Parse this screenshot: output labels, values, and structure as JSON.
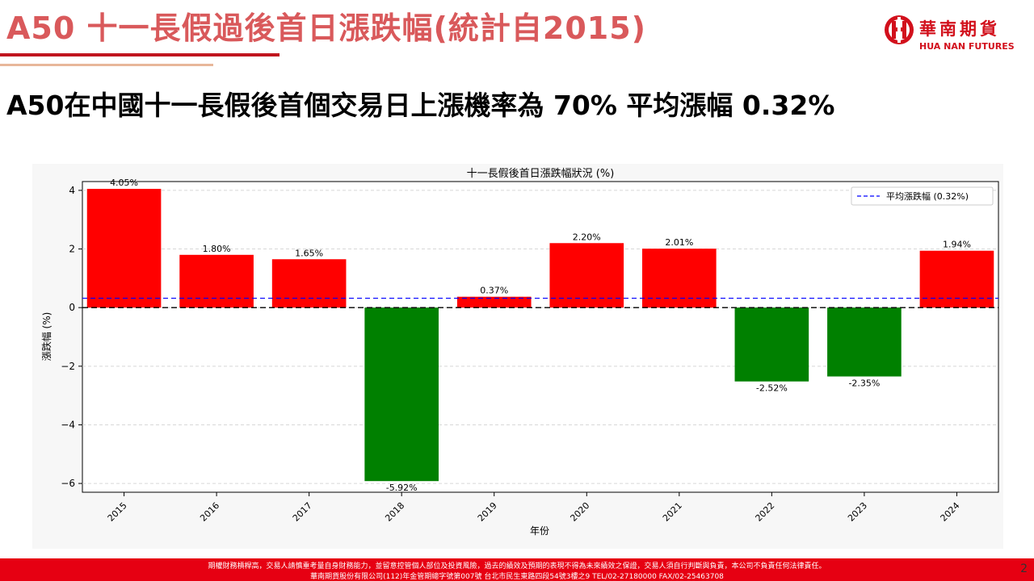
{
  "slide": {
    "title": "A50 十一長假過後首日漲跌幅(統計自2015)",
    "subtitle": "A50在中國十一長假後首個交易日上漲機率為 70% 平均漲幅 0.32%",
    "page_number": "2"
  },
  "logo": {
    "icon": "hua-nan-logo-icon",
    "name_cn": "華南期貨",
    "name_en": "HUA NAN FUTURES"
  },
  "colors": {
    "title": "#d9595b",
    "brand_red": "#e60012",
    "positive_bar": "#ff0000",
    "negative_bar": "#008000",
    "mean_line": "#0000ff",
    "zero_line": "#000000"
  },
  "chart_data": {
    "type": "bar",
    "title": "十一長假後首日漲跌幅狀況 (%)",
    "xlabel": "年份",
    "ylabel": "漲跌幅 (%)",
    "categories": [
      "2015",
      "2016",
      "2017",
      "2018",
      "2019",
      "2020",
      "2021",
      "2022",
      "2023",
      "2024"
    ],
    "values": [
      4.05,
      1.8,
      1.65,
      -5.92,
      0.37,
      2.2,
      2.01,
      -2.52,
      -2.35,
      1.94
    ],
    "data_labels": [
      "4.05%",
      "1.80%",
      "1.65%",
      "-5.92%",
      "0.37%",
      "2.20%",
      "2.01%",
      "-2.52%",
      "-2.35%",
      "1.94%"
    ],
    "yticks": [
      4,
      2,
      0,
      -2,
      -4,
      -6
    ],
    "ytick_labels": [
      "4",
      "2",
      "0",
      "−2",
      "−4",
      "−6"
    ],
    "ylim": [
      -6.3,
      4.3
    ],
    "mean_line": {
      "value": 0.32,
      "label": "平均漲跌幅 (0.32%)",
      "style": "dashed"
    },
    "zero_line": {
      "value": 0,
      "style": "dashed"
    },
    "grid": "horizontal dashed",
    "legend_position": "top-right"
  },
  "footer": {
    "line1": "期權財務槓桿高，交易人請慎重考量自身財務能力，並留意控管個人部位及投資風險，過去的績效及預期的表現不得為未來績效之保證，交易人須自行判斷與負責，本公司不負責任何法律責任。",
    "line2": "華南期貨股份有限公司(112)年金管期總字號第007號 台北市民生東路四段54號3樓之9 TEL/02-27180000 FAX/02-25463708"
  }
}
